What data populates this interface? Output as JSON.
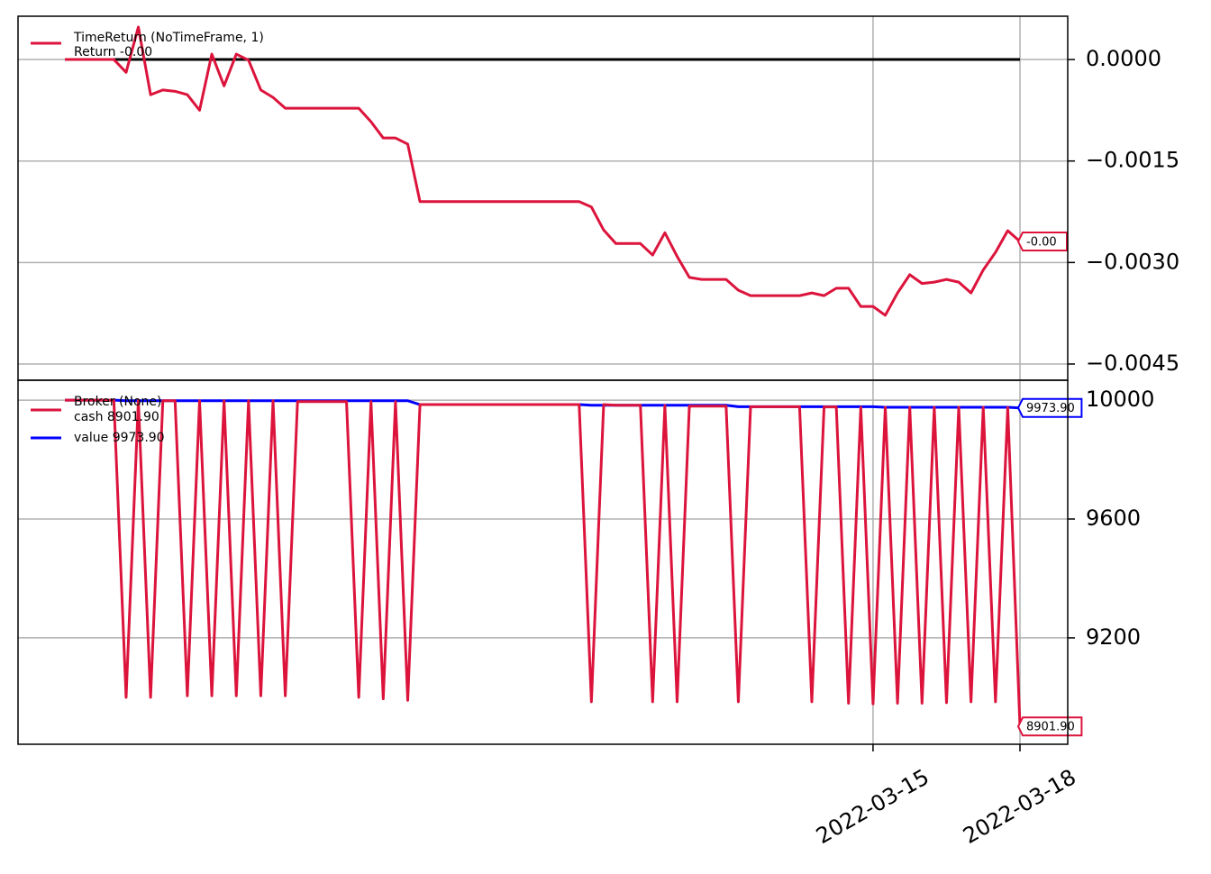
{
  "chart_data": [
    {
      "type": "line",
      "legend_note": "Return -0.00",
      "categories": [
        null,
        null,
        null,
        null,
        null,
        null,
        null,
        null,
        null,
        null,
        null,
        null,
        null,
        null,
        null,
        null,
        null,
        null,
        null,
        null,
        null,
        null,
        null,
        null,
        null,
        null,
        null,
        null,
        null,
        null,
        null,
        null,
        null,
        null,
        null,
        null,
        null,
        null,
        null,
        null,
        null,
        null,
        null,
        null,
        null,
        null,
        null,
        null,
        null,
        null,
        null,
        null,
        null,
        null,
        null,
        null,
        null,
        null,
        null,
        null,
        null,
        null,
        null,
        null,
        null,
        null,
        "2022-03-15",
        null,
        null,
        null,
        null,
        null,
        null,
        null,
        null,
        null,
        null,
        null,
        "2022-03-18"
      ],
      "series": [
        {
          "name": "TimeReturn (NoTimeFrame, 1)",
          "color": "#dc143c",
          "last_label": "-0.00",
          "values": [
            0,
            0,
            0,
            0,
            0,
            -0.00019,
            0.00048,
            -0.00052,
            -0.00045,
            -0.00047,
            -0.00052,
            -0.00075,
            8e-05,
            -0.00039,
            8e-05,
            -1e-05,
            -0.00045,
            -0.00056,
            -0.00072,
            -0.00072,
            -0.00072,
            -0.00072,
            -0.00072,
            -0.00072,
            -0.00072,
            -0.00092,
            -0.00116,
            -0.00116,
            -0.00125,
            -0.0021,
            -0.0021,
            -0.0021,
            -0.0021,
            -0.0021,
            -0.0021,
            -0.0021,
            -0.0021,
            -0.0021,
            -0.0021,
            -0.0021,
            -0.0021,
            -0.0021,
            -0.0021,
            -0.00218,
            -0.00252,
            -0.00272,
            -0.00272,
            -0.00272,
            -0.00289,
            -0.00256,
            -0.00291,
            -0.00322,
            -0.00325,
            -0.00325,
            -0.00325,
            -0.00341,
            -0.00349,
            -0.00349,
            -0.00349,
            -0.00349,
            -0.00349,
            -0.00345,
            -0.00349,
            -0.00338,
            -0.00338,
            -0.00365,
            -0.00365,
            -0.00378,
            -0.00345,
            -0.00318,
            -0.00331,
            -0.00329,
            -0.00325,
            -0.00329,
            -0.00345,
            -0.00311,
            -0.00285,
            -0.00253,
            -0.00269
          ]
        }
      ],
      "hlines": [
        {
          "value": 0,
          "color": "#000000"
        }
      ],
      "ylim": [
        -0.00474,
        0.00064
      ],
      "yticks": [
        {
          "value": 0,
          "label": "0.0000"
        },
        {
          "value": -0.0015,
          "label": "−0.0015"
        },
        {
          "value": -0.003,
          "label": "−0.0030"
        },
        {
          "value": -0.0045,
          "label": "−0.0045"
        }
      ],
      "grid": true
    },
    {
      "type": "line",
      "legend_title": "Broker (None)",
      "categories": [
        null,
        null,
        null,
        null,
        null,
        null,
        null,
        null,
        null,
        null,
        null,
        null,
        null,
        null,
        null,
        null,
        null,
        null,
        null,
        null,
        null,
        null,
        null,
        null,
        null,
        null,
        null,
        null,
        null,
        null,
        null,
        null,
        null,
        null,
        null,
        null,
        null,
        null,
        null,
        null,
        null,
        null,
        null,
        null,
        null,
        null,
        null,
        null,
        null,
        null,
        null,
        null,
        null,
        null,
        null,
        null,
        null,
        null,
        null,
        null,
        null,
        null,
        null,
        null,
        null,
        null,
        "2022-03-15",
        null,
        null,
        null,
        null,
        null,
        null,
        null,
        null,
        null,
        null,
        null,
        "2022-03-18"
      ],
      "series": [
        {
          "name": "cash 8901.90",
          "color": "#dc143c",
          "last_label": "8901.90",
          "values": [
            10000,
            10000,
            10000,
            10000,
            10000,
            9000,
            10000,
            9000,
            9998,
            9998,
            9005,
            9998,
            9005,
            9998,
            9005,
            9998,
            9005,
            9998,
            9005,
            9995,
            9995,
            9995,
            9995,
            9995,
            9000,
            9995,
            8995,
            9995,
            8990,
            9985,
            9985,
            9985,
            9985,
            9985,
            9985,
            9985,
            9985,
            9985,
            9985,
            9985,
            9985,
            9985,
            9985,
            8985,
            9985,
            9983,
            9983,
            9983,
            8985,
            9982,
            8985,
            9980,
            9980,
            9980,
            9980,
            8985,
            9978,
            9978,
            9978,
            9978,
            9978,
            8985,
            9977,
            9977,
            8980,
            9976,
            8978,
            9976,
            8980,
            9976,
            8980,
            9976,
            8982,
            9976,
            8985,
            9976,
            8985,
            9975,
            8901.9
          ]
        },
        {
          "name": "value 9973.90",
          "color": "#0000ff",
          "last_label": "9973.90",
          "values": [
            10000,
            10000,
            10000,
            10000,
            10000,
            9998,
            9998,
            9998,
            9998,
            9998,
            9998,
            9998,
            9998,
            9998,
            9998,
            9998,
            9998,
            9998,
            9998,
            9998,
            9998,
            9998,
            9998,
            9998,
            9998,
            9998,
            9998,
            9998,
            9998,
            9985,
            9985,
            9985,
            9985,
            9985,
            9985,
            9985,
            9985,
            9985,
            9985,
            9985,
            9985,
            9985,
            9985,
            9983,
            9983,
            9983,
            9983,
            9983,
            9983,
            9983,
            9983,
            9983,
            9983,
            9983,
            9983,
            9978,
            9978,
            9978,
            9978,
            9978,
            9978,
            9978,
            9978,
            9978,
            9978,
            9978,
            9978,
            9976,
            9976,
            9976,
            9976,
            9976,
            9976,
            9976,
            9976,
            9976,
            9976,
            9976,
            9973.9
          ]
        }
      ],
      "ylim": [
        8842,
        10067
      ],
      "yticks": [
        10000,
        9600,
        9200
      ],
      "grid": true
    }
  ]
}
